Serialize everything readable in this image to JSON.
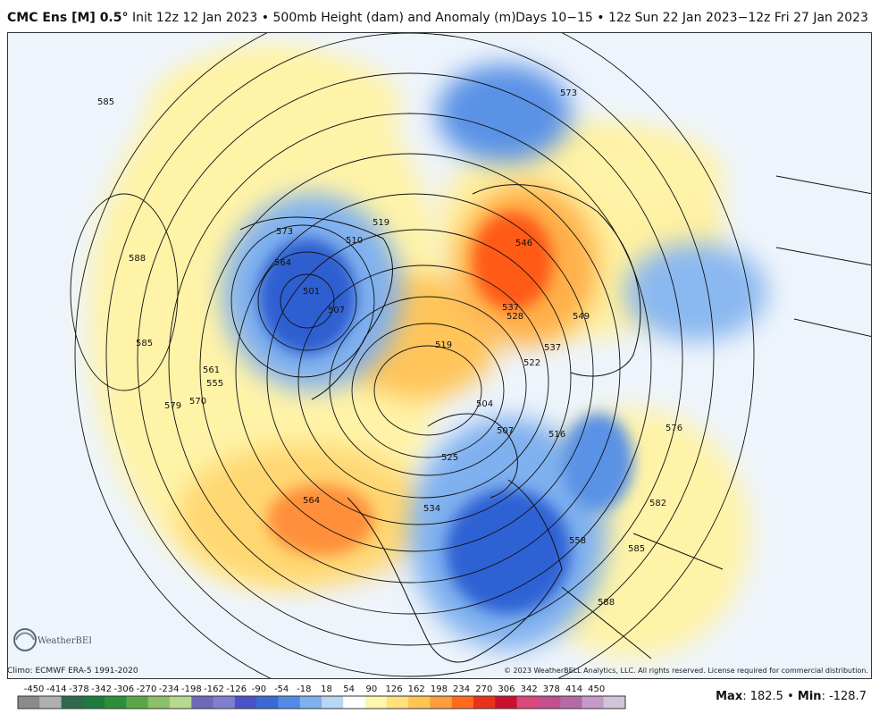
{
  "title": {
    "model": "CMC Ens [M] 0.5°",
    "init": "Init 12z 12 Jan 2023",
    "bullet": "•",
    "product": "500mb Height (dam) and Anomaly (m)",
    "right": "Days 10−15 • 12z Sun 22 Jan 2023−12z Fri 27 Jan 2023"
  },
  "climo": "Climo: ECMWF ERA-5 1991-2020",
  "copyright": "© 2023 WeatherBELL Analytics, LLC. All rights reserved. License required for commercial distribution.",
  "logo_text": "WeatherBELL",
  "stats": {
    "max_label": "Max",
    "max_value": "182.5",
    "sep": "•",
    "min_label": "Min",
    "min_value": "-128.7"
  },
  "colorbar": {
    "ticks": [
      "-450",
      "-414",
      "-378",
      "-342",
      "-306",
      "-270",
      "-234",
      "-198",
      "-162",
      "-126",
      "-90",
      "-54",
      "-18",
      "18",
      "54",
      "90",
      "126",
      "162",
      "198",
      "234",
      "270",
      "306",
      "342",
      "378",
      "414",
      "450"
    ],
    "colors": [
      "#8a8a8a",
      "#b0b0b0",
      "#2f6b4a",
      "#1f7a3d",
      "#2e8f3a",
      "#5aa845",
      "#8cc267",
      "#b7d98f",
      "#6e6ab8",
      "#7f7fd0",
      "#4a52c8",
      "#3a6ad6",
      "#4f8ce6",
      "#7fb0ef",
      "#b8d6f6",
      "#ffffff",
      "#fff6b0",
      "#ffe27a",
      "#ffc452",
      "#ff9e3a",
      "#ff6a1e",
      "#e8321c",
      "#c8102e",
      "#d9487a",
      "#c0508f",
      "#b36aa6",
      "#c69ac8",
      "#d4c4d8"
    ]
  },
  "contour_labels": [
    "585",
    "588",
    "585",
    "579",
    "570",
    "561",
    "555",
    "564",
    "573",
    "564",
    "501",
    "507",
    "510",
    "519",
    "519",
    "546",
    "537",
    "528",
    "537",
    "522",
    "549",
    "573",
    "576",
    "582",
    "585",
    "588",
    "558",
    "516",
    "507",
    "504",
    "525",
    "534"
  ]
}
